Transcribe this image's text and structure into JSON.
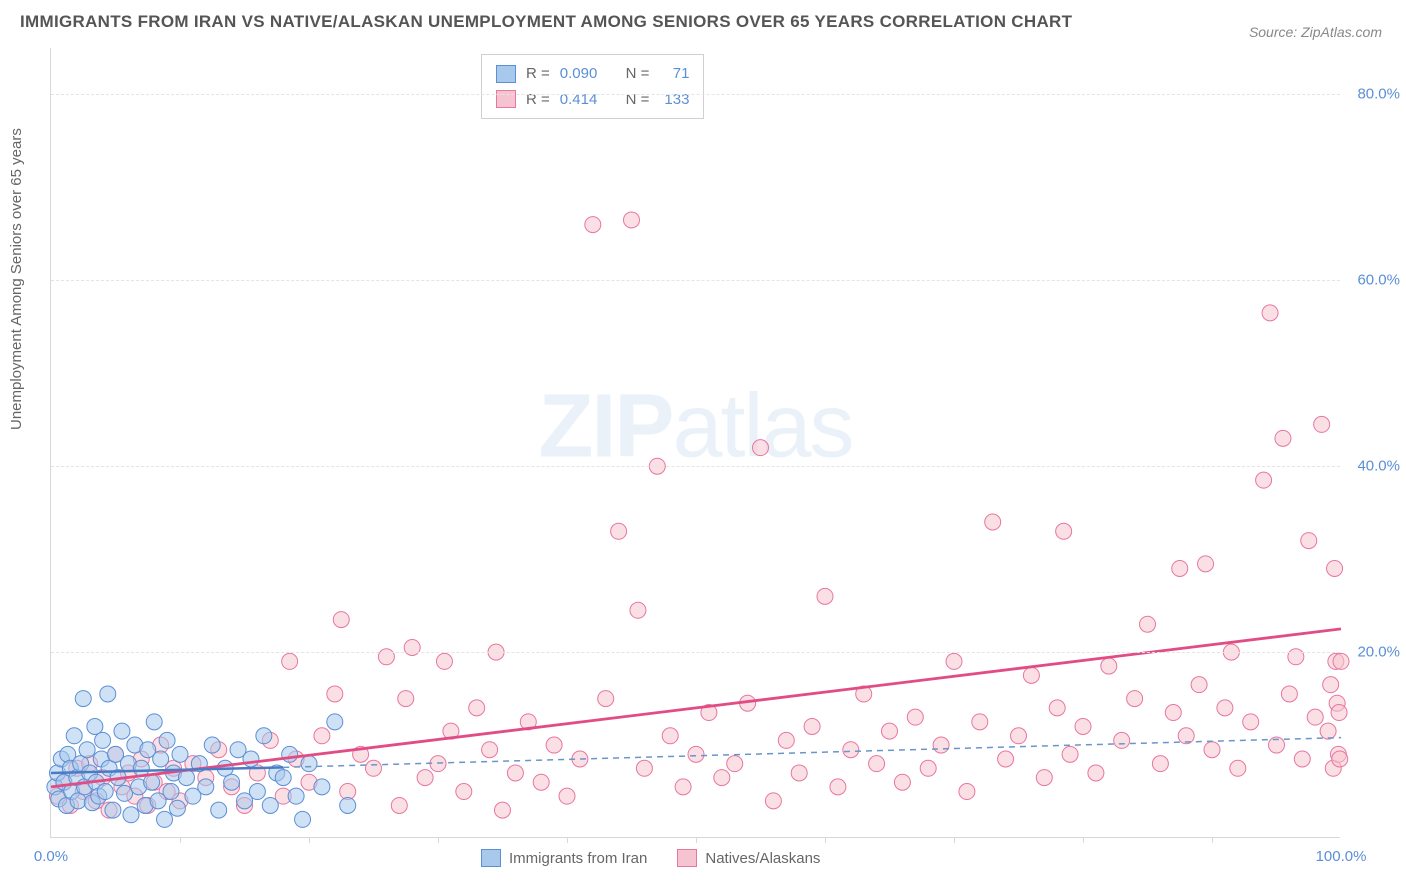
{
  "title": "IMMIGRANTS FROM IRAN VS NATIVE/ALASKAN UNEMPLOYMENT AMONG SENIORS OVER 65 YEARS CORRELATION CHART",
  "source": "Source: ZipAtlas.com",
  "ylabel": "Unemployment Among Seniors over 65 years",
  "watermark_zip": "ZIP",
  "watermark_atlas": "atlas",
  "chart": {
    "type": "scatter",
    "xlim": [
      0,
      100
    ],
    "ylim": [
      0,
      85
    ],
    "ytick_values": [
      20,
      40,
      60,
      80
    ],
    "ytick_labels": [
      "20.0%",
      "40.0%",
      "60.0%",
      "80.0%"
    ],
    "xtick_values": [
      0,
      100
    ],
    "xtick_labels": [
      "0.0%",
      "100.0%"
    ],
    "x_minor_ticks": [
      10,
      20,
      30,
      40,
      50,
      60,
      70,
      80,
      90
    ],
    "background_color": "#ffffff",
    "grid_color": "#e4e4e4",
    "marker_radius": 8,
    "marker_opacity": 0.55,
    "series": [
      {
        "name": "Immigrants from Iran",
        "color_fill": "#a8c8ec",
        "color_stroke": "#5b8fd6",
        "R": "0.090",
        "N": "71",
        "trend": {
          "x1": 0,
          "y1": 7.0,
          "x2": 18,
          "y2": 7.6,
          "solid_until_x": 18,
          "dash_to_x": 100,
          "dash_y": 10.8,
          "stroke": "#4a7bc4",
          "dash_stroke": "#6a95c9",
          "width": 2.5
        },
        "points": [
          [
            0.3,
            5.5
          ],
          [
            0.5,
            7.0
          ],
          [
            0.6,
            4.2
          ],
          [
            0.8,
            8.5
          ],
          [
            1.0,
            6.0
          ],
          [
            1.2,
            3.5
          ],
          [
            1.3,
            9.0
          ],
          [
            1.5,
            7.5
          ],
          [
            1.6,
            5.0
          ],
          [
            1.8,
            11.0
          ],
          [
            2.0,
            6.5
          ],
          [
            2.1,
            4.0
          ],
          [
            2.3,
            8.0
          ],
          [
            2.5,
            15.0
          ],
          [
            2.6,
            5.5
          ],
          [
            2.8,
            9.5
          ],
          [
            3.0,
            7.0
          ],
          [
            3.2,
            3.8
          ],
          [
            3.4,
            12.0
          ],
          [
            3.5,
            6.0
          ],
          [
            3.7,
            4.5
          ],
          [
            3.9,
            8.5
          ],
          [
            4.0,
            10.5
          ],
          [
            4.2,
            5.0
          ],
          [
            4.4,
            15.5
          ],
          [
            4.5,
            7.5
          ],
          [
            4.8,
            3.0
          ],
          [
            5.0,
            9.0
          ],
          [
            5.2,
            6.5
          ],
          [
            5.5,
            11.5
          ],
          [
            5.7,
            4.8
          ],
          [
            6.0,
            8.0
          ],
          [
            6.2,
            2.5
          ],
          [
            6.5,
            10.0
          ],
          [
            6.8,
            5.5
          ],
          [
            7.0,
            7.5
          ],
          [
            7.3,
            3.5
          ],
          [
            7.5,
            9.5
          ],
          [
            7.8,
            6.0
          ],
          [
            8.0,
            12.5
          ],
          [
            8.3,
            4.0
          ],
          [
            8.5,
            8.5
          ],
          [
            8.8,
            2.0
          ],
          [
            9.0,
            10.5
          ],
          [
            9.3,
            5.0
          ],
          [
            9.5,
            7.0
          ],
          [
            9.8,
            3.2
          ],
          [
            10.0,
            9.0
          ],
          [
            10.5,
            6.5
          ],
          [
            11.0,
            4.5
          ],
          [
            11.5,
            8.0
          ],
          [
            12.0,
            5.5
          ],
          [
            12.5,
            10.0
          ],
          [
            13.0,
            3.0
          ],
          [
            13.5,
            7.5
          ],
          [
            14.0,
            6.0
          ],
          [
            14.5,
            9.5
          ],
          [
            15.0,
            4.0
          ],
          [
            15.5,
            8.5
          ],
          [
            16.0,
            5.0
          ],
          [
            16.5,
            11.0
          ],
          [
            17.0,
            3.5
          ],
          [
            17.5,
            7.0
          ],
          [
            18.0,
            6.5
          ],
          [
            18.5,
            9.0
          ],
          [
            19.0,
            4.5
          ],
          [
            19.5,
            2.0
          ],
          [
            20.0,
            8.0
          ],
          [
            21.0,
            5.5
          ],
          [
            22.0,
            12.5
          ],
          [
            23.0,
            3.5
          ]
        ]
      },
      {
        "name": "Natives/Alaskans",
        "color_fill": "#f6c4d0",
        "color_stroke": "#e876a0",
        "R": "0.414",
        "N": "133",
        "trend": {
          "x1": 0,
          "y1": 5.5,
          "x2": 100,
          "y2": 22.5,
          "solid_until_x": 100,
          "stroke": "#e24c85",
          "width": 2.8
        },
        "points": [
          [
            0.5,
            4.5
          ],
          [
            1.0,
            6.0
          ],
          [
            1.5,
            3.5
          ],
          [
            2.0,
            7.5
          ],
          [
            2.5,
            5.0
          ],
          [
            3.0,
            8.0
          ],
          [
            3.5,
            4.0
          ],
          [
            4.0,
            6.5
          ],
          [
            4.5,
            3.0
          ],
          [
            5.0,
            9.0
          ],
          [
            5.5,
            5.5
          ],
          [
            6.0,
            7.0
          ],
          [
            6.5,
            4.5
          ],
          [
            7.0,
            8.5
          ],
          [
            7.5,
            3.5
          ],
          [
            8.0,
            6.0
          ],
          [
            8.5,
            10.0
          ],
          [
            9.0,
            5.0
          ],
          [
            9.5,
            7.5
          ],
          [
            10.0,
            4.0
          ],
          [
            11.0,
            8.0
          ],
          [
            12.0,
            6.5
          ],
          [
            13.0,
            9.5
          ],
          [
            14.0,
            5.5
          ],
          [
            15.0,
            3.5
          ],
          [
            16.0,
            7.0
          ],
          [
            17.0,
            10.5
          ],
          [
            18.0,
            4.5
          ],
          [
            18.5,
            19.0
          ],
          [
            19.0,
            8.5
          ],
          [
            20.0,
            6.0
          ],
          [
            21.0,
            11.0
          ],
          [
            22.0,
            15.5
          ],
          [
            22.5,
            23.5
          ],
          [
            23.0,
            5.0
          ],
          [
            24.0,
            9.0
          ],
          [
            25.0,
            7.5
          ],
          [
            26.0,
            19.5
          ],
          [
            27.0,
            3.5
          ],
          [
            27.5,
            15.0
          ],
          [
            28.0,
            20.5
          ],
          [
            29.0,
            6.5
          ],
          [
            30.0,
            8.0
          ],
          [
            30.5,
            19.0
          ],
          [
            31.0,
            11.5
          ],
          [
            32.0,
            5.0
          ],
          [
            33.0,
            14.0
          ],
          [
            34.0,
            9.5
          ],
          [
            34.5,
            20.0
          ],
          [
            35.0,
            3.0
          ],
          [
            36.0,
            7.0
          ],
          [
            37.0,
            12.5
          ],
          [
            38.0,
            6.0
          ],
          [
            39.0,
            10.0
          ],
          [
            40.0,
            4.5
          ],
          [
            41.0,
            8.5
          ],
          [
            42.0,
            66.0
          ],
          [
            43.0,
            15.0
          ],
          [
            44.0,
            33.0
          ],
          [
            45.0,
            66.5
          ],
          [
            45.5,
            24.5
          ],
          [
            46.0,
            7.5
          ],
          [
            47.0,
            40.0
          ],
          [
            48.0,
            11.0
          ],
          [
            49.0,
            5.5
          ],
          [
            50.0,
            9.0
          ],
          [
            51.0,
            13.5
          ],
          [
            52.0,
            6.5
          ],
          [
            53.0,
            8.0
          ],
          [
            54.0,
            14.5
          ],
          [
            55.0,
            42.0
          ],
          [
            56.0,
            4.0
          ],
          [
            57.0,
            10.5
          ],
          [
            58.0,
            7.0
          ],
          [
            59.0,
            12.0
          ],
          [
            60.0,
            26.0
          ],
          [
            61.0,
            5.5
          ],
          [
            62.0,
            9.5
          ],
          [
            63.0,
            15.5
          ],
          [
            64.0,
            8.0
          ],
          [
            65.0,
            11.5
          ],
          [
            66.0,
            6.0
          ],
          [
            67.0,
            13.0
          ],
          [
            68.0,
            7.5
          ],
          [
            69.0,
            10.0
          ],
          [
            70.0,
            19.0
          ],
          [
            71.0,
            5.0
          ],
          [
            72.0,
            12.5
          ],
          [
            73.0,
            34.0
          ],
          [
            74.0,
            8.5
          ],
          [
            75.0,
            11.0
          ],
          [
            76.0,
            17.5
          ],
          [
            77.0,
            6.5
          ],
          [
            78.0,
            14.0
          ],
          [
            78.5,
            33.0
          ],
          [
            79.0,
            9.0
          ],
          [
            80.0,
            12.0
          ],
          [
            81.0,
            7.0
          ],
          [
            82.0,
            18.5
          ],
          [
            83.0,
            10.5
          ],
          [
            84.0,
            15.0
          ],
          [
            85.0,
            23.0
          ],
          [
            86.0,
            8.0
          ],
          [
            87.0,
            13.5
          ],
          [
            87.5,
            29.0
          ],
          [
            88.0,
            11.0
          ],
          [
            89.0,
            16.5
          ],
          [
            89.5,
            29.5
          ],
          [
            90.0,
            9.5
          ],
          [
            91.0,
            14.0
          ],
          [
            91.5,
            20.0
          ],
          [
            92.0,
            7.5
          ],
          [
            93.0,
            12.5
          ],
          [
            94.0,
            38.5
          ],
          [
            94.5,
            56.5
          ],
          [
            95.0,
            10.0
          ],
          [
            95.5,
            43.0
          ],
          [
            96.0,
            15.5
          ],
          [
            96.5,
            19.5
          ],
          [
            97.0,
            8.5
          ],
          [
            97.5,
            32.0
          ],
          [
            98.0,
            13.0
          ],
          [
            98.5,
            44.5
          ],
          [
            99.0,
            11.5
          ],
          [
            99.2,
            16.5
          ],
          [
            99.4,
            7.5
          ],
          [
            99.5,
            29.0
          ],
          [
            99.6,
            19.0
          ],
          [
            99.7,
            14.5
          ],
          [
            99.8,
            9.0
          ],
          [
            99.85,
            13.5
          ],
          [
            99.9,
            8.5
          ],
          [
            100.0,
            19.0
          ]
        ]
      }
    ],
    "legend_top": {
      "r_label": "R =",
      "n_label": "N ="
    },
    "legend_bottom": [
      {
        "label": "Immigrants from Iran",
        "fill": "#a8c8ec",
        "stroke": "#5b8fd6"
      },
      {
        "label": "Natives/Alaskans",
        "fill": "#f6c4d0",
        "stroke": "#e876a0"
      }
    ]
  }
}
